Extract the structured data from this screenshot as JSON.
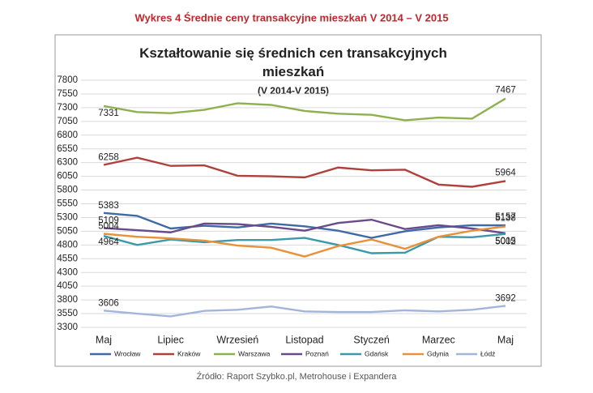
{
  "chart_data": {
    "type": "line",
    "caption": "Wykres 4 Średnie ceny transakcyjne mieszkań V 2014 – V 2015",
    "title": "Kształtowanie się średnich cen transakcyjnych mieszkań",
    "subtitle": "(V 2014-V 2015)",
    "source": "Źródło: Raport Szybko.pl, Metrohouse i Expandera",
    "categories": [
      "Maj",
      null,
      "Lipiec",
      null,
      "Wrzesień",
      null,
      "Listopad",
      null,
      "Styczeń",
      null,
      "Marzec",
      null,
      "Maj"
    ],
    "ylim": [
      3300,
      7800
    ],
    "yticks": [
      3300,
      3550,
      3800,
      4050,
      4300,
      4550,
      4800,
      5050,
      5300,
      5550,
      5800,
      6050,
      6300,
      6550,
      6800,
      7050,
      7300,
      7550,
      7800
    ],
    "grid": true,
    "legend": "bottom",
    "series": [
      {
        "name": "Wrocław",
        "color": "#3f6aa6",
        "values": [
          5383,
          5330,
          5100,
          5150,
          5120,
          5190,
          5140,
          5060,
          4930,
          5050,
          5120,
          5160,
          5157
        ]
      },
      {
        "name": "Kraków",
        "color": "#b0403c",
        "values": [
          6258,
          6390,
          6240,
          6250,
          6060,
          6050,
          6030,
          6210,
          6160,
          6170,
          5900,
          5860,
          5964
        ]
      },
      {
        "name": "Warszawa",
        "color": "#8fb04f",
        "values": [
          7331,
          7220,
          7200,
          7260,
          7380,
          7350,
          7240,
          7190,
          7170,
          7070,
          7120,
          7100,
          7467
        ]
      },
      {
        "name": "Poznań",
        "color": "#6a4a8a",
        "values": [
          5109,
          5070,
          5030,
          5190,
          5180,
          5130,
          5060,
          5200,
          5260,
          5090,
          5160,
          5100,
          5015
        ]
      },
      {
        "name": "Gdańsk",
        "color": "#3a9aa8",
        "values": [
          4964,
          4800,
          4900,
          4850,
          4890,
          4890,
          4930,
          4800,
          4650,
          4660,
          4950,
          4940,
          5002
        ]
      },
      {
        "name": "Gdynia",
        "color": "#e8913a",
        "values": [
          5004,
          4950,
          4920,
          4880,
          4790,
          4750,
          4590,
          4780,
          4900,
          4730,
          4950,
          5060,
          5138
        ]
      },
      {
        "name": "Łódź",
        "color": "#a3b5d9",
        "values": [
          3606,
          3550,
          3500,
          3600,
          3620,
          3680,
          3590,
          3580,
          3580,
          3610,
          3590,
          3620,
          3692
        ]
      }
    ]
  }
}
